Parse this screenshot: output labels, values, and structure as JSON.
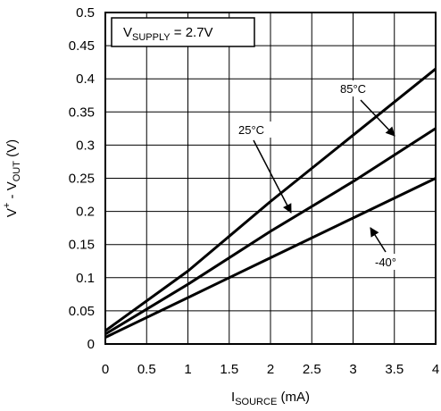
{
  "chart_data": {
    "type": "line",
    "title": "",
    "xlabel_main": "I",
    "xlabel_sub": "SOURCE",
    "xlabel_unit": " (mA)",
    "ylabel_pre": "V",
    "ylabel_sup": "+",
    "ylabel_mid": " - V",
    "ylabel_sub": "OUT",
    "ylabel_unit": " (V)",
    "xlim": [
      0,
      4
    ],
    "ylim": [
      0,
      0.5
    ],
    "xticks": [
      "0",
      "0.5",
      "1",
      "1.5",
      "2",
      "2.5",
      "3",
      "3.5",
      "4"
    ],
    "yticks": [
      "0",
      "0.05",
      "0.1",
      "0.15",
      "0.2",
      "0.25",
      "0.3",
      "0.35",
      "0.4",
      "0.45",
      "0.5"
    ],
    "grid": true,
    "annotation": {
      "main": "V",
      "sub": "SUPPLY",
      "rest": " = 2.7V"
    },
    "series": [
      {
        "name": "85°C",
        "x": [
          0,
          1,
          2,
          3,
          4
        ],
        "y": [
          0.02,
          0.11,
          0.215,
          0.315,
          0.415
        ]
      },
      {
        "name": "25°C",
        "x": [
          0,
          1,
          2,
          3,
          4
        ],
        "y": [
          0.015,
          0.09,
          0.17,
          0.245,
          0.325
        ]
      },
      {
        "name": "-40°",
        "x": [
          0,
          1,
          2,
          3,
          4
        ],
        "y": [
          0.01,
          0.07,
          0.13,
          0.19,
          0.25
        ]
      }
    ]
  }
}
